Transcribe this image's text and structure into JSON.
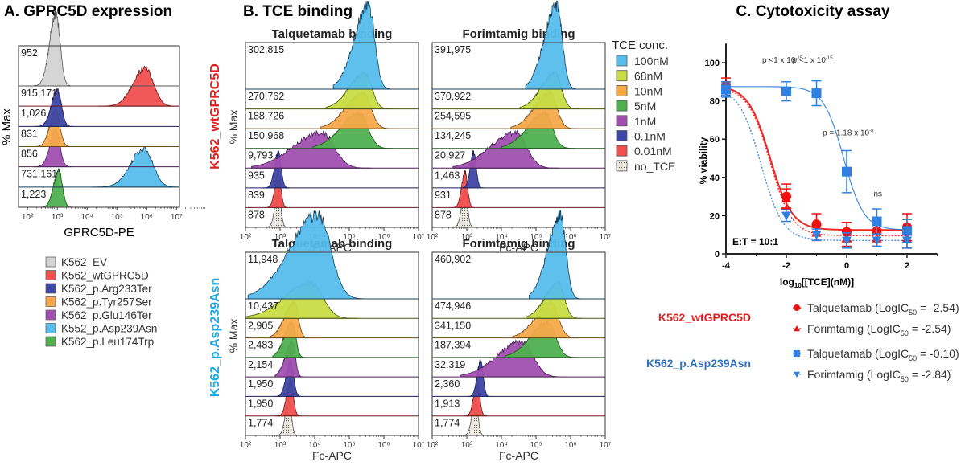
{
  "chart_data": [
    {
      "id": "panelA",
      "type": "histogram-stack",
      "title": "A. GPRC5D expression",
      "xlabel": "GPRC5D-PE",
      "ylabel": "% Max",
      "x_scale": "log10",
      "xlim": [
        50,
        10000000
      ],
      "xticks": [
        "10²",
        "10³",
        "10⁴",
        "10⁵",
        "10⁶",
        "10⁷"
      ],
      "tracks": [
        {
          "label": "K562_EV",
          "mfi": "952",
          "color": "#d3d3d3",
          "peak_log": 2.95,
          "width": 0.18,
          "height": 0.95,
          "edge": "#555555"
        },
        {
          "label": "K562_wtGPRC5D",
          "mfi": "915,171",
          "color": "#f05050",
          "peak_log": 5.95,
          "width": 0.35,
          "height": 1.0,
          "edge": "#6b1a1a"
        },
        {
          "label": "K562_p.Arg233Ter",
          "mfi": "1,026",
          "color": "#3d46a3",
          "peak_log": 3.0,
          "width": 0.17,
          "height": 0.95,
          "edge": "#1b1f55"
        },
        {
          "label": "K562_p.Tyr257Ser",
          "mfi": "831",
          "color": "#f7a94a",
          "peak_log": 2.95,
          "width": 0.17,
          "height": 0.95,
          "edge": "#6b4a1a"
        },
        {
          "label": "K562_p.Glu146Ter",
          "mfi": "856",
          "color": "#a04fb0",
          "peak_log": 2.95,
          "width": 0.17,
          "height": 0.95,
          "edge": "#4a1f55"
        },
        {
          "label": "K552_p.Asp239Asn",
          "mfi": "731,161",
          "color": "#56bdec",
          "peak_log": 5.9,
          "width": 0.38,
          "height": 1.0,
          "edge": "#17405a"
        },
        {
          "label": "K562_p.Leu174Trp",
          "mfi": "1,223",
          "color": "#4fb04f",
          "peak_log": 3.05,
          "width": 0.15,
          "height": 0.95,
          "edge": "#1f551f"
        }
      ],
      "legend": [
        "K562_EV",
        "K562_wtGPRC5D",
        "K562_p.Arg233Ter",
        "K562_p.Tyr257Ser",
        "K562_p.Glu146Ter",
        "K552_p.Asp239Asn",
        "K562_p.Leu174Trp"
      ]
    },
    {
      "id": "panelB",
      "type": "histogram-stack",
      "title": "B. TCE binding",
      "xlabel": "Fc-APC",
      "ylabel": "% Max",
      "x_scale": "log10",
      "xlim": [
        100,
        10000000
      ],
      "xticks": [
        "10²",
        "10³",
        "10⁴",
        "10⁵",
        "10⁶",
        "10⁷"
      ],
      "legend_title": "TCE conc.",
      "legend": [
        {
          "label": "100nM",
          "color": "#56bdec"
        },
        {
          "label": "68nM",
          "color": "#c7dc45"
        },
        {
          "label": "10nM",
          "color": "#f7a94a"
        },
        {
          "label": "5nM",
          "color": "#4fb04f"
        },
        {
          "label": "1nM",
          "color": "#a04fb0"
        },
        {
          "label": "0.1nM",
          "color": "#3d46a3"
        },
        {
          "label": "0.01nM",
          "color": "#f05050"
        },
        {
          "label": "no_TCE",
          "color": "#e6e2dc",
          "dotted": true
        }
      ],
      "row_labels": [
        {
          "label": "K562_wtGPRC5D",
          "color": "#e02020"
        },
        {
          "label": "K562_p.Asp239Asn",
          "color": "#1aaae8"
        }
      ],
      "subplots": [
        {
          "title": "Talquetamab binding",
          "row": 0,
          "col": 0,
          "mfi": [
            "302,815",
            "270,762",
            "188,726",
            "150,968",
            "9,793",
            "935",
            "839",
            "878"
          ],
          "peaks": [
            5.55,
            5.45,
            5.4,
            5.3,
            4.2,
            2.95,
            2.95,
            2.95
          ],
          "widths": [
            0.45,
            0.5,
            0.55,
            0.6,
            0.9,
            0.2,
            0.18,
            0.18
          ]
        },
        {
          "title": "Forimtamig binding",
          "row": 0,
          "col": 1,
          "mfi": [
            "391,975",
            "370,922",
            "254,595",
            "134,245",
            "20,927",
            "1,463",
            "931",
            "878"
          ],
          "peaks": [
            5.6,
            5.55,
            5.4,
            5.25,
            4.4,
            3.2,
            2.95,
            2.95
          ],
          "widths": [
            0.4,
            0.45,
            0.5,
            0.55,
            0.8,
            0.18,
            0.18,
            0.18
          ]
        },
        {
          "title": "Talquetamab binding",
          "row": 1,
          "col": 0,
          "mfi": [
            "11,948",
            "10,437",
            "2,905",
            "2,483",
            "2,154",
            "1,950",
            "1,950",
            "1,774"
          ],
          "peaks": [
            4.1,
            3.9,
            3.4,
            3.35,
            3.35,
            3.3,
            3.3,
            3.25
          ],
          "widths": [
            0.9,
            0.85,
            0.3,
            0.25,
            0.22,
            0.22,
            0.2,
            0.18
          ]
        },
        {
          "title": "Forimtamig binding",
          "row": 1,
          "col": 1,
          "mfi": [
            "460,902",
            "474,946",
            "341,150",
            "187,394",
            "32,319",
            "2,360",
            "1,913",
            "1,774"
          ],
          "peaks": [
            5.7,
            5.65,
            5.45,
            5.35,
            4.6,
            3.4,
            3.3,
            3.25
          ],
          "widths": [
            0.4,
            0.42,
            0.5,
            0.55,
            0.8,
            0.18,
            0.18,
            0.18
          ]
        }
      ]
    },
    {
      "id": "panelC",
      "type": "line",
      "title": "C. Cytotoxicity assay",
      "xlabel": "log10[[TCE](nM)]",
      "ylabel": "% viability",
      "xlim": [
        -4,
        3
      ],
      "ylim": [
        0,
        110
      ],
      "xticks": [
        -4,
        -2,
        0,
        2
      ],
      "yticks": [
        0,
        20,
        40,
        60,
        80,
        100
      ],
      "annotation": "E:T = 10:1",
      "pvalues": [
        {
          "x": -2,
          "text": "p <1 x 10",
          "exp": "-15"
        },
        {
          "x": -1,
          "text": "p <1 x 10",
          "exp": "-15"
        },
        {
          "x": 0,
          "text": "p = 1.18 x 10",
          "exp": "-8"
        },
        {
          "x": 1,
          "text": "ns",
          "exp": ""
        }
      ],
      "series": [
        {
          "name": "Talquetamab",
          "cell_line": "K562_wtGPRC5D",
          "logic50": "-2.54",
          "marker": "circle",
          "color": "#f01010",
          "dashed": false,
          "x": [
            -4,
            -2,
            -1,
            0,
            1,
            2
          ],
          "y": [
            88,
            30,
            15.5,
            11.5,
            12,
            14
          ],
          "err": [
            4,
            6.5,
            5.5,
            5,
            5,
            7
          ],
          "fit": {
            "top": 88,
            "bottom": 12.5,
            "logic50": -2.54,
            "hill": 1.2
          }
        },
        {
          "name": "Forimtamig",
          "cell_line": "K562_wtGPRC5D",
          "logic50": "-2.54",
          "marker": "triangle-up",
          "color": "#f01010",
          "dashed": true,
          "x": [
            -4,
            -2,
            -1,
            0,
            1,
            2
          ],
          "y": [
            87,
            29,
            11,
            8,
            8,
            8
          ],
          "err": [
            3,
            5,
            4,
            4,
            4,
            5
          ],
          "fit": {
            "top": 87,
            "bottom": 9.5,
            "logic50": -2.54,
            "hill": 1.2
          }
        },
        {
          "name": "Talquetamab",
          "cell_line": "K562_p.Asp239Asn",
          "logic50": "-0.10",
          "marker": "square",
          "color": "#2f80e0",
          "dashed": false,
          "x": [
            -4,
            -2,
            -1,
            0,
            1,
            2
          ],
          "y": [
            86,
            85,
            84,
            43,
            17,
            12
          ],
          "err": [
            4,
            5,
            6.5,
            11,
            6.5,
            6
          ],
          "fit": {
            "top": 87.5,
            "bottom": 12.5,
            "logic50": -0.1,
            "hill": 1.3
          }
        },
        {
          "name": "Forimtamig",
          "cell_line": "K562_p.Asp239Asn",
          "logic50": "-2.84",
          "marker": "triangle-down",
          "color": "#2f80e0",
          "dashed": true,
          "x": [
            -4,
            -2,
            -1,
            0,
            1,
            2
          ],
          "y": [
            86,
            20,
            10,
            7,
            7,
            7
          ],
          "err": [
            3,
            3,
            3,
            4,
            3,
            4
          ],
          "fit": {
            "top": 87,
            "bottom": 7,
            "logic50": -2.84,
            "hill": 1.2
          }
        }
      ],
      "legend_groups": [
        {
          "label": "K562_wtGPRC5D",
          "color": "#e02020",
          "items": [
            {
              "marker": "circle",
              "text": "Talquetamab (LogIC",
              "sub": "50",
              "value": " = -2.54)"
            },
            {
              "marker": "triangle-up",
              "text": "Forimtamig (LogIC",
              "sub": "50",
              "value": " = -2.54)"
            }
          ]
        },
        {
          "label": "K562_p.Asp239Asn",
          "color": "#2f70c0",
          "items": [
            {
              "marker": "square",
              "text": "Talquetamab (LogIC",
              "sub": "50",
              "value": " = -0.10)"
            },
            {
              "marker": "triangle-down",
              "text": "Forimtamig (LogIC",
              "sub": "50",
              "value": " = -2.84)"
            }
          ]
        }
      ]
    }
  ]
}
